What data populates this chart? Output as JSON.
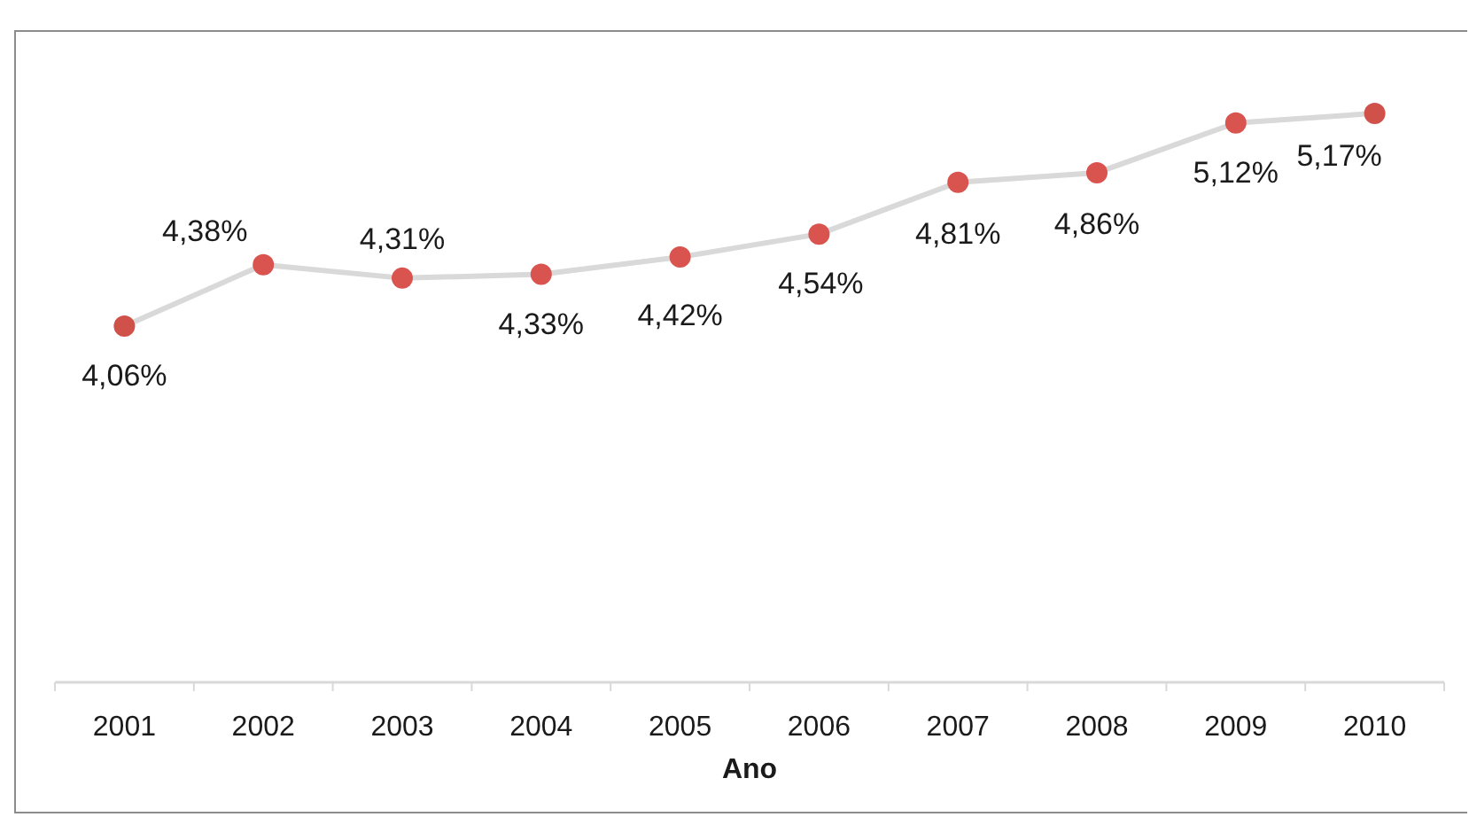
{
  "chart_data": {
    "type": "line",
    "xlabel": "Ano",
    "categories": [
      "2001",
      "2002",
      "2003",
      "2004",
      "2005",
      "2006",
      "2007",
      "2008",
      "2009",
      "2010"
    ],
    "series": [
      {
        "color": "#d9d9d9",
        "colors": [
          "#d0504a",
          "#d9534f",
          "#d9534f",
          "#d9534f",
          "#d9534f",
          "#d9534f",
          "#d9534f",
          "#d9534f",
          "#d9534f",
          "#d0504a"
        ],
        "values": [
          4.06,
          4.38,
          4.31,
          4.33,
          4.42,
          4.54,
          4.81,
          4.86,
          5.12,
          5.17
        ],
        "value_labels": [
          "4,06%",
          "4,38%",
          "4,31%",
          "4,33%",
          "4,42%",
          "4,54%",
          "4,81%",
          "4,86%",
          "5,12%",
          "5,17%"
        ]
      }
    ],
    "ylim": [
      2.2,
      5.6
    ],
    "marker": "circle",
    "line_style": "solid",
    "tick_labels": "x"
  }
}
